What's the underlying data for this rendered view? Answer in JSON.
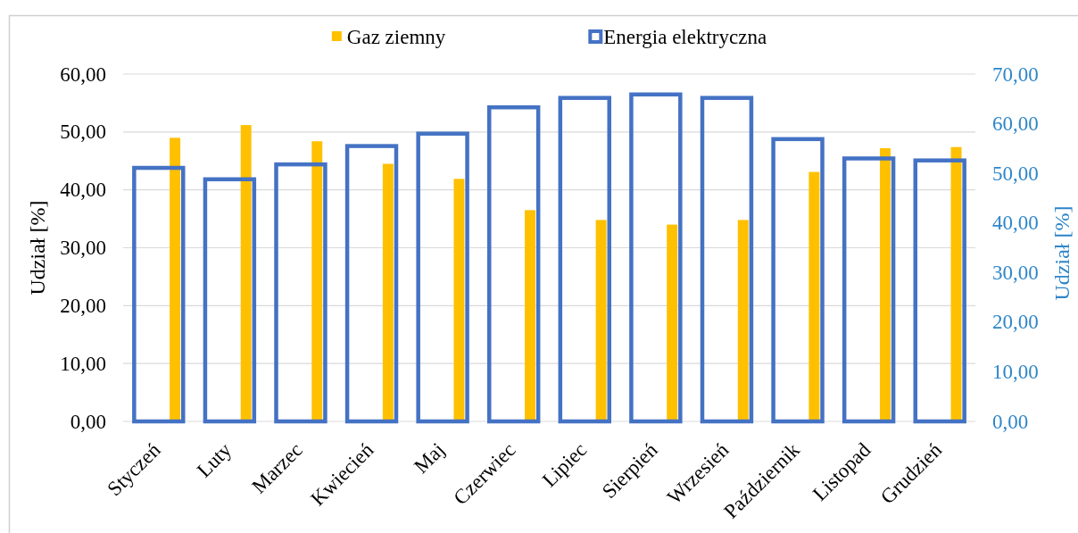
{
  "chart_data": {
    "type": "bar",
    "categories": [
      "Styczeń",
      "Luty",
      "Marzec",
      "Kwiecień",
      "Maj",
      "Czerwiec",
      "Lipiec",
      "Sierpień",
      "Wrzesień",
      "Październik",
      "Listopad",
      "Grudzień"
    ],
    "series": [
      {
        "name": "Gaz ziemny",
        "color": "#ffc000",
        "values": [
          49.0,
          51.2,
          48.4,
          44.5,
          41.9,
          36.5,
          34.8,
          34.0,
          34.8,
          43.1,
          47.2,
          47.4
        ]
      },
      {
        "name": "Energia elektryczna",
        "color": "#4472c4",
        "axis": "y2",
        "values": [
          51.1,
          48.8,
          51.8,
          55.5,
          58.0,
          63.3,
          65.2,
          65.9,
          65.2,
          56.9,
          53.0,
          52.6
        ]
      }
    ],
    "ylabel": "Udział [%]",
    "y2label": "Udział [%]",
    "ylim": [
      0,
      60
    ],
    "yticks": [
      {
        "value": 0,
        "label": "0,00"
      },
      {
        "value": 10,
        "label": "10,00"
      },
      {
        "value": 20,
        "label": "20,00"
      },
      {
        "value": 30,
        "label": "30,00"
      },
      {
        "value": 40,
        "label": "40,00"
      },
      {
        "value": 50,
        "label": "50,00"
      },
      {
        "value": 60,
        "label": "60,00"
      }
    ],
    "y2lim": [
      0,
      70
    ],
    "y2ticks": [
      {
        "value": 0,
        "label": "0,00"
      },
      {
        "value": 10,
        "label": "10,00"
      },
      {
        "value": 20,
        "label": "20,00"
      },
      {
        "value": 30,
        "label": "30,00"
      },
      {
        "value": 40,
        "label": "40,00"
      },
      {
        "value": 50,
        "label": "50,00"
      },
      {
        "value": 60,
        "label": "60,00"
      },
      {
        "value": 70,
        "label": "70,00"
      }
    ],
    "grid": "y",
    "legend": "top"
  }
}
